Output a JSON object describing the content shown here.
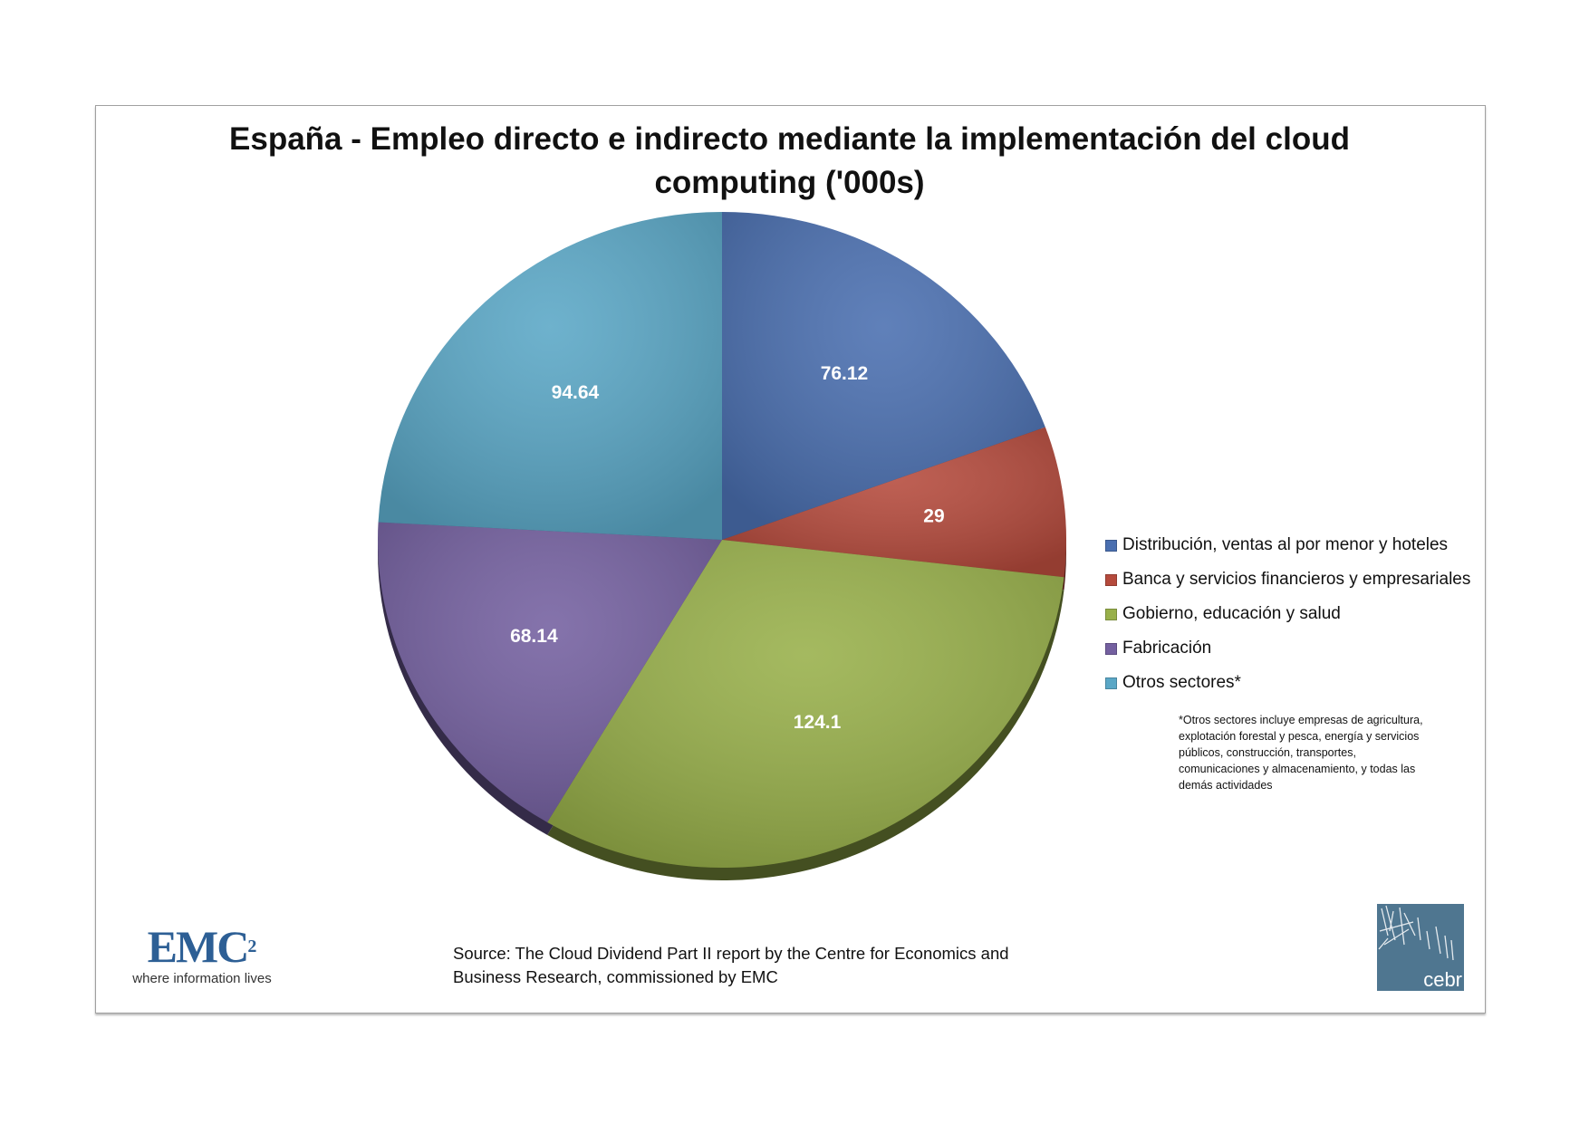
{
  "chart_data": {
    "type": "pie",
    "title": "España - Empleo directo e indirecto mediante la implementación del cloud computing ('000s)",
    "title_lines": [
      "España - Empleo directo e indirecto mediante la implementación del cloud",
      "computing ('000s)"
    ],
    "categories": [
      "Distribución, ventas al por menor y hoteles",
      "Banca y servicios financieros y empresariales",
      "Gobierno, educación y salud",
      "Fabricación",
      "Otros sectores*"
    ],
    "values": [
      76.12,
      29,
      124.1,
      68.14,
      94.64
    ],
    "data_labels": [
      "76.12",
      "29",
      "124.1",
      "68.14",
      "94.64"
    ],
    "colors": [
      "#4a6fb0",
      "#b54a3c",
      "#98b04a",
      "#7460a0",
      "#5aa7c6"
    ],
    "legend_placement": "right",
    "style": "3d-pie",
    "footnote": "*Otros sectores incluye empresas de agricultura, explotación forestal y pesca, energía y servicios públicos, construcción, transportes, comunicaciones y almacenamiento, y todas las demás actividades"
  },
  "source": {
    "line1": "Source: The Cloud Dividend Part II report by the Centre for Economics and",
    "line2": "Business Research, commissioned by EMC"
  },
  "logos": {
    "emc": {
      "word": "EMC",
      "sup": "2",
      "tagline": "where information lives"
    },
    "cebr": {
      "word": "cebr"
    }
  }
}
